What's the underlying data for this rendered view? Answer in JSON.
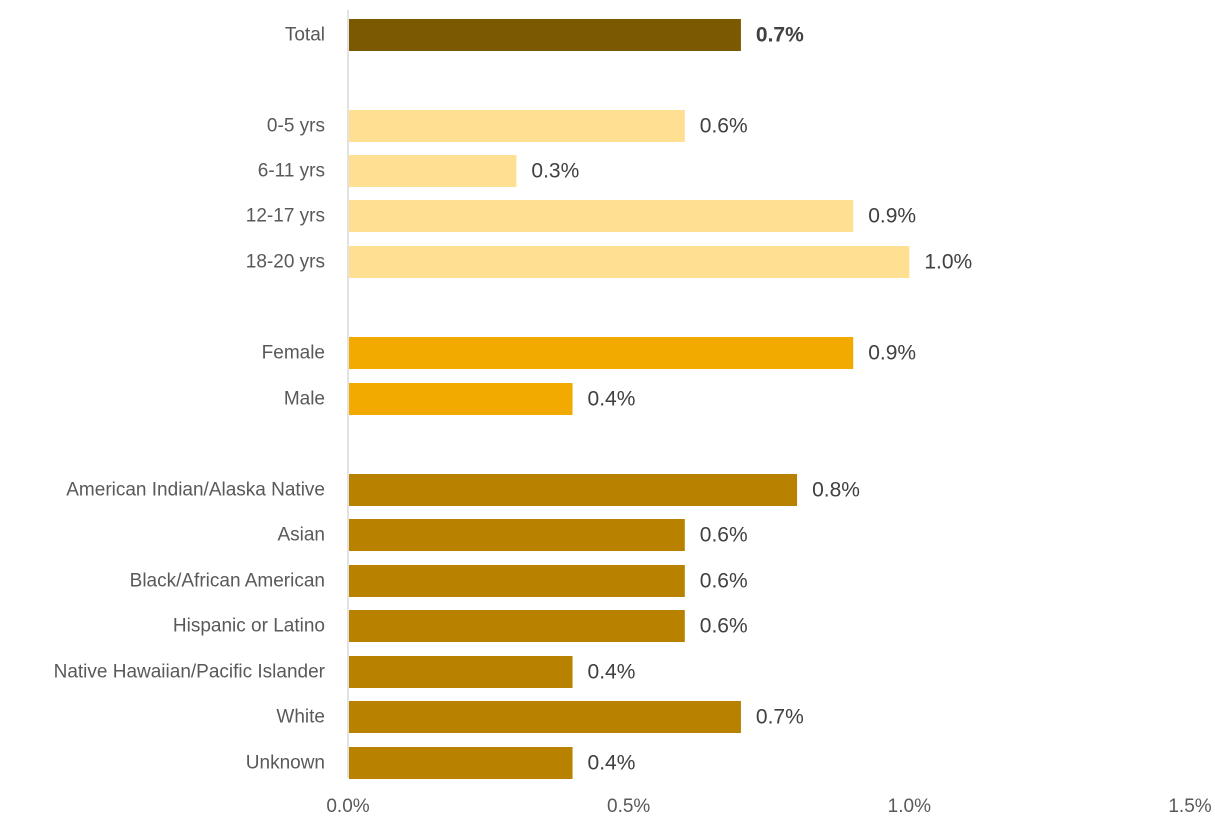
{
  "chart_data": {
    "type": "bar",
    "orientation": "horizontal",
    "title": "",
    "xlabel": "",
    "ylabel": "",
    "xlim": [
      0,
      1.5
    ],
    "x_ticks": [
      "0.0%",
      "0.5%",
      "1.0%",
      "1.5%"
    ],
    "grid": false,
    "colors": {
      "total": "#7a5900",
      "age": "#ffdf91",
      "sex": "#f2a900",
      "race": "#b88100"
    },
    "bars": [
      {
        "label": "Total",
        "value": 0.7,
        "value_label": "0.7%",
        "group": "total",
        "bold": true
      },
      {
        "label": "0-5 yrs",
        "value": 0.6,
        "value_label": "0.6%",
        "group": "age"
      },
      {
        "label": "6-11 yrs",
        "value": 0.3,
        "value_label": "0.3%",
        "group": "age"
      },
      {
        "label": "12-17 yrs",
        "value": 0.9,
        "value_label": "0.9%",
        "group": "age"
      },
      {
        "label": "18-20 yrs",
        "value": 1.0,
        "value_label": "1.0%",
        "group": "age"
      },
      {
        "label": "Female",
        "value": 0.9,
        "value_label": "0.9%",
        "group": "sex"
      },
      {
        "label": "Male",
        "value": 0.4,
        "value_label": "0.4%",
        "group": "sex"
      },
      {
        "label": "American Indian/Alaska Native",
        "value": 0.8,
        "value_label": "0.8%",
        "group": "race"
      },
      {
        "label": "Asian",
        "value": 0.6,
        "value_label": "0.6%",
        "group": "race"
      },
      {
        "label": "Black/African American",
        "value": 0.6,
        "value_label": "0.6%",
        "group": "race"
      },
      {
        "label": "Hispanic or Latino",
        "value": 0.6,
        "value_label": "0.6%",
        "group": "race"
      },
      {
        "label": "Native Hawaiian/Pacific Islander",
        "value": 0.4,
        "value_label": "0.4%",
        "group": "race"
      },
      {
        "label": "White",
        "value": 0.7,
        "value_label": "0.7%",
        "group": "race"
      },
      {
        "label": "Unknown",
        "value": 0.4,
        "value_label": "0.4%",
        "group": "race"
      }
    ]
  }
}
